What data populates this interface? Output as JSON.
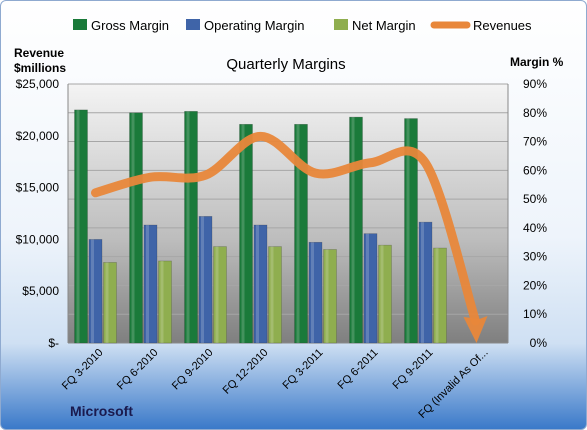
{
  "chart_data": {
    "type": "bar",
    "title": "Quarterly Margins",
    "company": "Microsoft",
    "y_left_label_line1": "Revenue",
    "y_left_label_line2": "$millions",
    "y_right_label": "Margin %",
    "y_left_range": [
      0,
      25000
    ],
    "y_right_range": [
      0,
      90
    ],
    "y_left_ticks": [
      "$-",
      "$5,000",
      "$10,000",
      "$15,000",
      "$20,000",
      "$25,000"
    ],
    "y_right_ticks": [
      "0%",
      "10%",
      "20%",
      "30%",
      "40%",
      "50%",
      "60%",
      "70%",
      "80%",
      "90%"
    ],
    "categories": [
      "FQ 3-2010",
      "FQ 6-2010",
      "FQ 9-2010",
      "FQ 12-2010",
      "FQ 3-2011",
      "FQ 6-2011",
      "FQ 9-2011",
      "FQ (Invalid As Of..."
    ],
    "series": [
      {
        "name": "Gross Margin",
        "axis": "right",
        "color": "#1a7a3a",
        "values": [
          81,
          80,
          80.5,
          76,
          76,
          78.5,
          78,
          null
        ]
      },
      {
        "name": "Operating Margin",
        "axis": "right",
        "color": "#3f64a8",
        "values": [
          36,
          41,
          44,
          41,
          35,
          38,
          42,
          null
        ]
      },
      {
        "name": "Net Margin",
        "axis": "right",
        "color": "#8fae4f",
        "values": [
          28,
          28.5,
          33.5,
          33.5,
          32.5,
          34,
          33,
          null
        ]
      },
      {
        "name": "Revenues",
        "axis": "left",
        "color": "#e8873a",
        "values": [
          14500,
          16000,
          16200,
          19950,
          16400,
          17400,
          17370,
          0
        ]
      }
    ],
    "grid": true,
    "legend_position": "top"
  }
}
